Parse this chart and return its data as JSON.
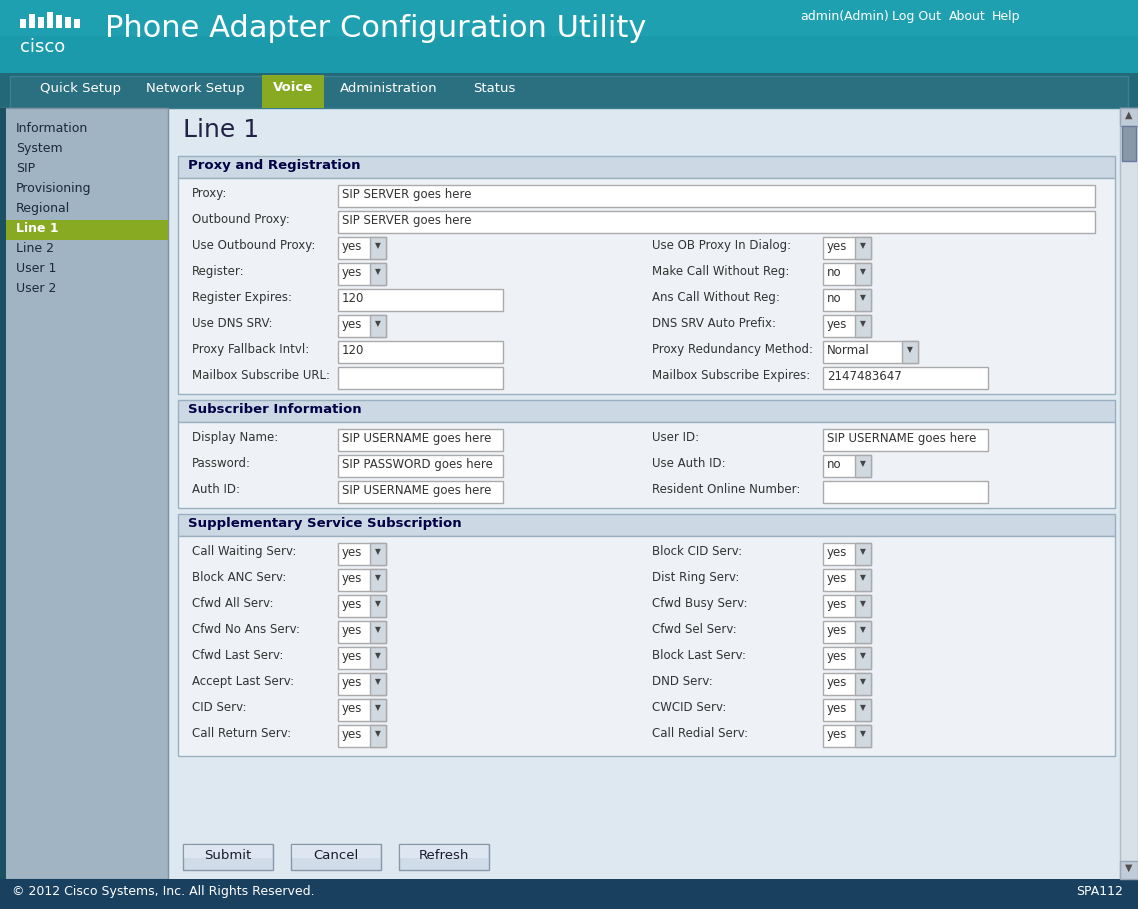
{
  "title": "Phone Adapter Configuration Utility",
  "header_bg1": "#1a9aaa",
  "header_bg2": "#0e7a8a",
  "header_text_color": "#ffffff",
  "top_right_links": [
    "admin(Admin)",
    "Log Out",
    "About",
    "Help"
  ],
  "nav_tabs": [
    "Quick Setup",
    "Network Setup",
    "Voice",
    "Administration",
    "Status"
  ],
  "active_tab": "Voice",
  "active_tab_color": "#88aa22",
  "nav_bg": "#2a6878",
  "sidebar_bg": "#a0b4c4",
  "sidebar_items": [
    "Information",
    "System",
    "SIP",
    "Provisioning",
    "Regional",
    "Line 1",
    "Line 2",
    "User 1",
    "User 2"
  ],
  "active_sidebar": "Line 1",
  "active_sidebar_color": "#88aa22",
  "content_bg": "#dde8f0",
  "content_title": "Line 1",
  "section1_title": "Proxy and Registration",
  "section2_title": "Subscriber Information",
  "section3_title": "Supplementary Service Subscription",
  "footer_text": "© 2012 Cisco Systems, Inc. All Rights Reserved.",
  "footer_right": "SPA112",
  "footer_bg": "#1a4060",
  "footer_text_color": "#ffffff",
  "button_labels": [
    "Submit",
    "Cancel",
    "Refresh"
  ],
  "label_color": "#333333",
  "field_bg": "#ffffff",
  "field_border": "#aaaaaa",
  "section_header_bg": "#ccd8e4",
  "section_body_bg": "#eef2f6",
  "section_border": "#9ab0c0",
  "scrollbar_bg": "#c8d4dc",
  "scrollbar_thumb": "#8898a8"
}
